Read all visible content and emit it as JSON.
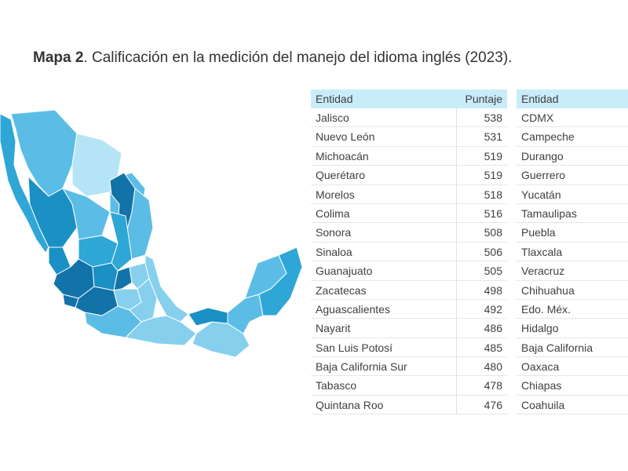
{
  "title": {
    "prefix": "Mapa 2",
    "text": ". Calificación en la medición del manejo del idioma inglés (2023)."
  },
  "map": {
    "colors": {
      "darkest": "#1273a8",
      "dark": "#1a90c4",
      "mid": "#2ea6d6",
      "light": "#5bbde5",
      "lighter": "#86d0ee",
      "lightest": "#b5e4f6"
    }
  },
  "table1": {
    "header": {
      "entity": "Entidad",
      "score": "Puntaje"
    },
    "rows": [
      {
        "entity": "Jalisco",
        "score": "538"
      },
      {
        "entity": "Nuevo León",
        "score": "531"
      },
      {
        "entity": "Michoacán",
        "score": "519"
      },
      {
        "entity": "Querétaro",
        "score": "519"
      },
      {
        "entity": "Morelos",
        "score": "518"
      },
      {
        "entity": "Colima",
        "score": "516"
      },
      {
        "entity": "Sonora",
        "score": "508"
      },
      {
        "entity": "Sinaloa",
        "score": "506"
      },
      {
        "entity": "Guanajuato",
        "score": "505"
      },
      {
        "entity": "Zacatecas",
        "score": "498"
      },
      {
        "entity": "Aguascalientes",
        "score": "492"
      },
      {
        "entity": "Nayarit",
        "score": "486"
      },
      {
        "entity": "San Luis Potosí",
        "score": "485"
      },
      {
        "entity": "Baja California Sur",
        "score": "480"
      },
      {
        "entity": "Tabasco",
        "score": "478"
      },
      {
        "entity": "Quintana Roo",
        "score": "476"
      }
    ]
  },
  "table2": {
    "header": {
      "entity": "Entidad"
    },
    "rows": [
      {
        "entity": "CDMX"
      },
      {
        "entity": "Campeche"
      },
      {
        "entity": "Durango"
      },
      {
        "entity": "Guerrero"
      },
      {
        "entity": "Yucatán"
      },
      {
        "entity": "Tamaulipas"
      },
      {
        "entity": "Puebla"
      },
      {
        "entity": "Tlaxcala"
      },
      {
        "entity": "Veracruz"
      },
      {
        "entity": "Chihuahua"
      },
      {
        "entity": "Edo. Méx."
      },
      {
        "entity": "Hidalgo"
      },
      {
        "entity": "Baja California"
      },
      {
        "entity": "Oaxaca"
      },
      {
        "entity": "Chiapas"
      },
      {
        "entity": "Coahuila"
      }
    ]
  }
}
